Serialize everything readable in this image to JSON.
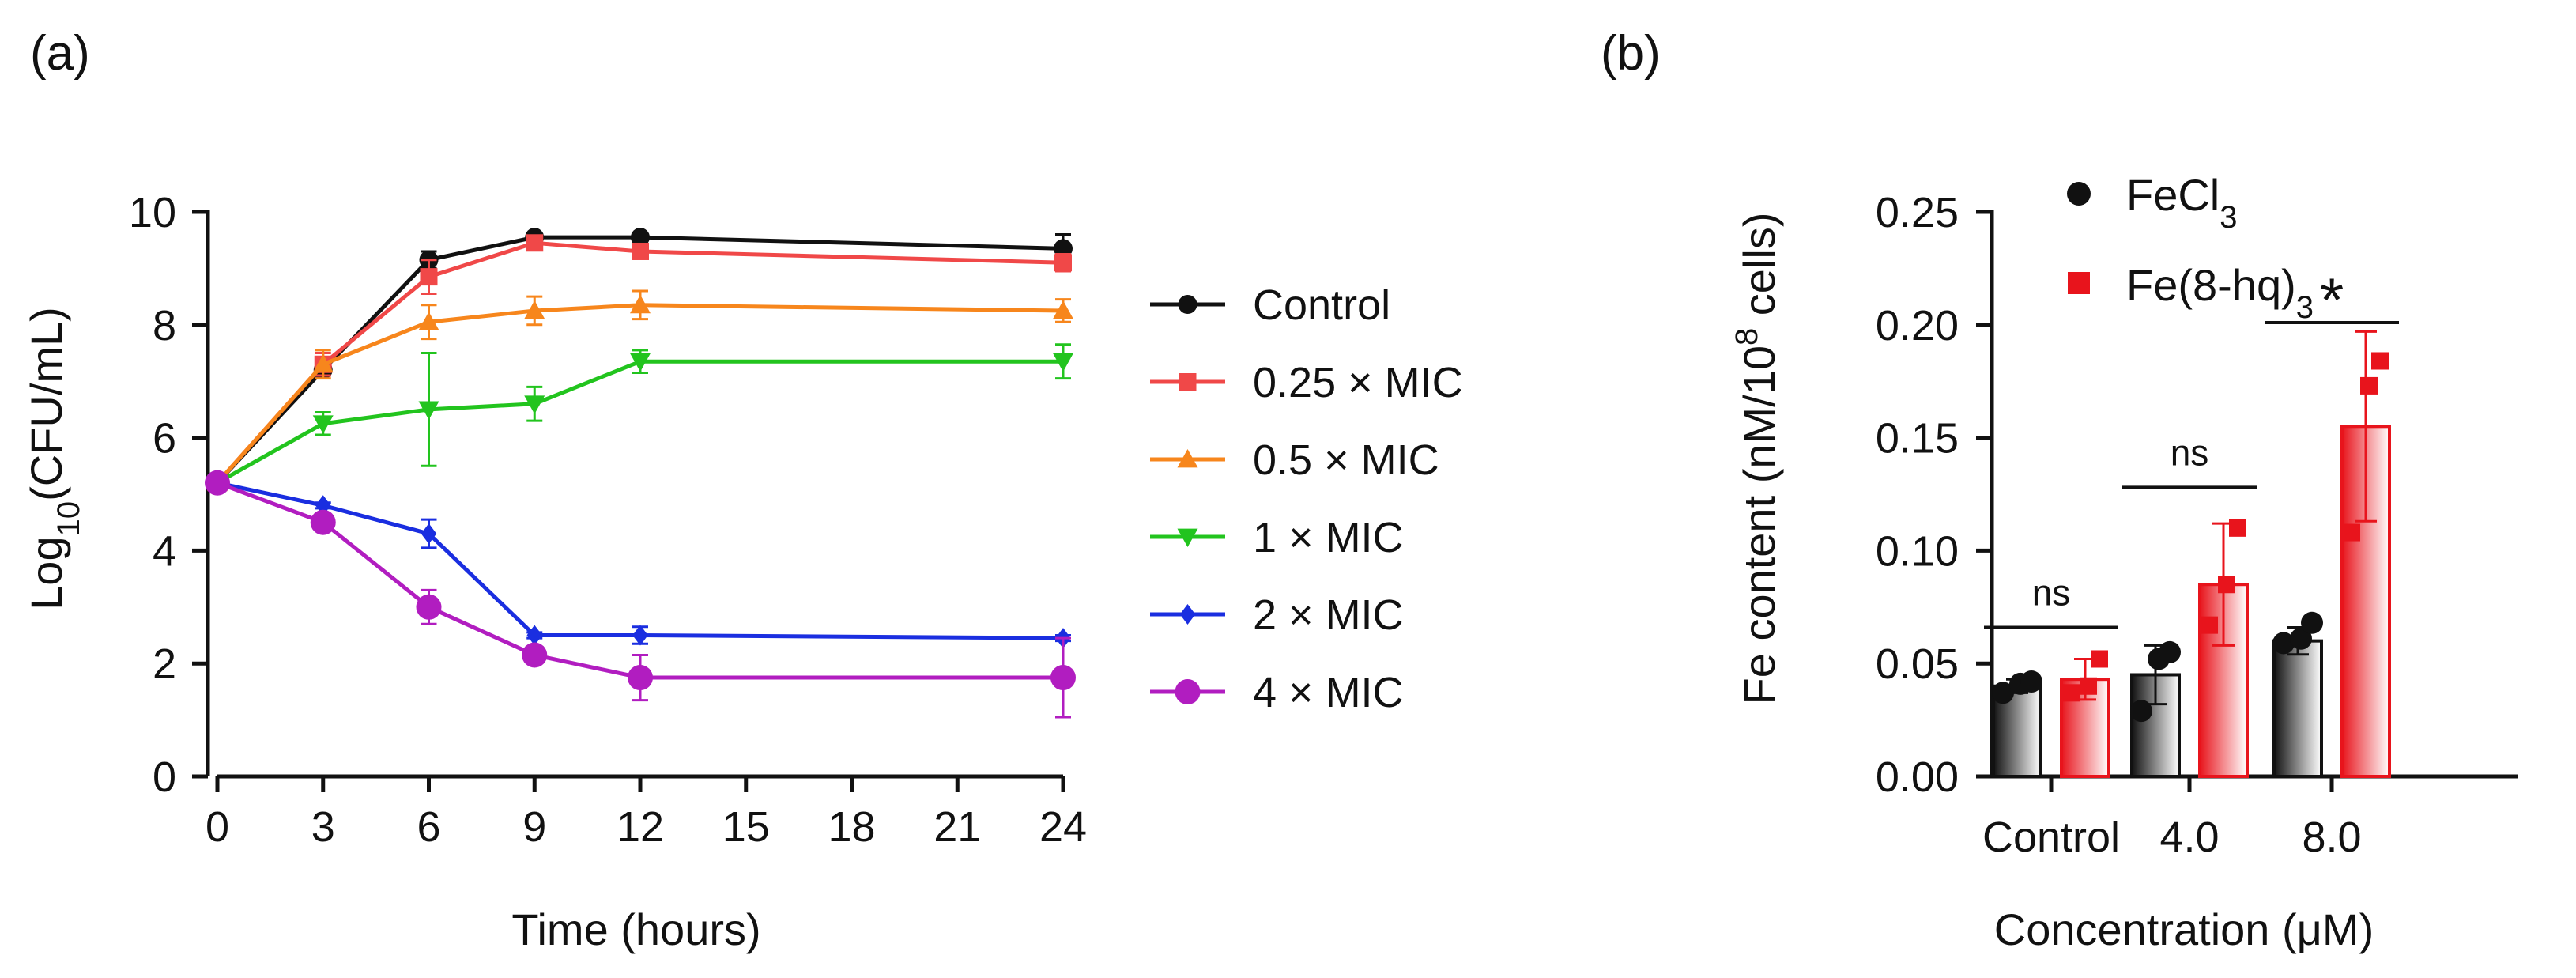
{
  "chart_data": [
    {
      "panel": "(a)",
      "type": "line",
      "xlabel": "Time (hours)",
      "ylabel_prefix": "Log",
      "ylabel_sub": "10",
      "ylabel_suffix": "(CFU/mL)",
      "xlim": [
        0,
        24
      ],
      "ylim": [
        0,
        10
      ],
      "xticks": [
        0,
        3,
        6,
        9,
        12,
        15,
        18,
        21,
        24
      ],
      "yticks": [
        0,
        2,
        4,
        6,
        8,
        10
      ],
      "legend_position": "right",
      "x": [
        0,
        3,
        6,
        9,
        12,
        24
      ],
      "series": [
        {
          "name": "Control",
          "color": "#111111",
          "marker": "circle",
          "values": [
            5.2,
            7.2,
            9.15,
            9.55,
            9.55,
            9.35
          ],
          "errors": [
            0.05,
            0.1,
            0.15,
            0.05,
            0.05,
            0.25
          ]
        },
        {
          "name": "0.25 × MIC",
          "color": "#f04848",
          "marker": "square",
          "values": [
            5.2,
            7.3,
            8.85,
            9.45,
            9.3,
            9.1
          ],
          "errors": [
            0.05,
            0.2,
            0.3,
            0.1,
            0.1,
            0.15
          ]
        },
        {
          "name": "0.5 × MIC",
          "color": "#f7861c",
          "marker": "triangle-up",
          "values": [
            5.2,
            7.3,
            8.05,
            8.25,
            8.35,
            8.25
          ],
          "errors": [
            0.05,
            0.25,
            0.3,
            0.25,
            0.25,
            0.2
          ]
        },
        {
          "name": "1 × MIC",
          "color": "#22c41e",
          "marker": "triangle-down",
          "values": [
            5.2,
            6.25,
            6.5,
            6.6,
            7.35,
            7.35
          ],
          "errors": [
            0.05,
            0.2,
            1.0,
            0.3,
            0.2,
            0.3
          ]
        },
        {
          "name": "2 × MIC",
          "color": "#1a2ee0",
          "marker": "diamond",
          "values": [
            5.2,
            4.8,
            4.3,
            2.5,
            2.5,
            2.45
          ],
          "errors": [
            0.05,
            0.05,
            0.25,
            0.05,
            0.15,
            0.05
          ]
        },
        {
          "name": "4 × MIC",
          "color": "#b11dc0",
          "marker": "circle-large",
          "values": [
            5.2,
            4.5,
            3.0,
            2.15,
            1.75,
            1.75
          ],
          "errors": [
            0.05,
            0.1,
            0.3,
            0.05,
            0.4,
            0.7
          ]
        }
      ]
    },
    {
      "panel": "(b)",
      "type": "bar",
      "xlabel": "Concentration (μM)",
      "ylabel_prefix": "Fe content (nM/10",
      "ylabel_sup": "8",
      "ylabel_suffix": " cells)",
      "ylim": [
        0,
        0.25
      ],
      "yticks": [
        "0.00",
        "0.05",
        "0.10",
        "0.15",
        "0.20",
        "0.25"
      ],
      "categories": [
        "Control",
        "4.0",
        "8.0"
      ],
      "legend_position": "top-left",
      "series": [
        {
          "name_main": "FeCl",
          "name_sub": "3",
          "name_end": "",
          "color": "#111111",
          "marker": "circle",
          "values": [
            0.04,
            0.045,
            0.06
          ],
          "errors": [
            0.003,
            0.013,
            0.006
          ],
          "points": [
            [
              0.037,
              0.041,
              0.042
            ],
            [
              0.029,
              0.052,
              0.055
            ],
            [
              0.059,
              0.061,
              0.068
            ]
          ]
        },
        {
          "name_main": "Fe(8-hq)",
          "name_sub": "3",
          "name_end": "",
          "color": "#e8141c",
          "marker": "square",
          "values": [
            0.043,
            0.085,
            0.155
          ],
          "errors": [
            0.009,
            0.027,
            0.042
          ],
          "points": [
            [
              0.037,
              0.04,
              0.052
            ],
            [
              0.067,
              0.085,
              0.11
            ],
            [
              0.108,
              0.173,
              0.184
            ]
          ]
        }
      ],
      "annotations": [
        {
          "category": "Control",
          "text": "ns",
          "y": 0.066
        },
        {
          "category": "4.0",
          "text": "ns",
          "y": 0.128
        },
        {
          "category": "8.0",
          "text": "*",
          "y": 0.201
        }
      ]
    }
  ]
}
